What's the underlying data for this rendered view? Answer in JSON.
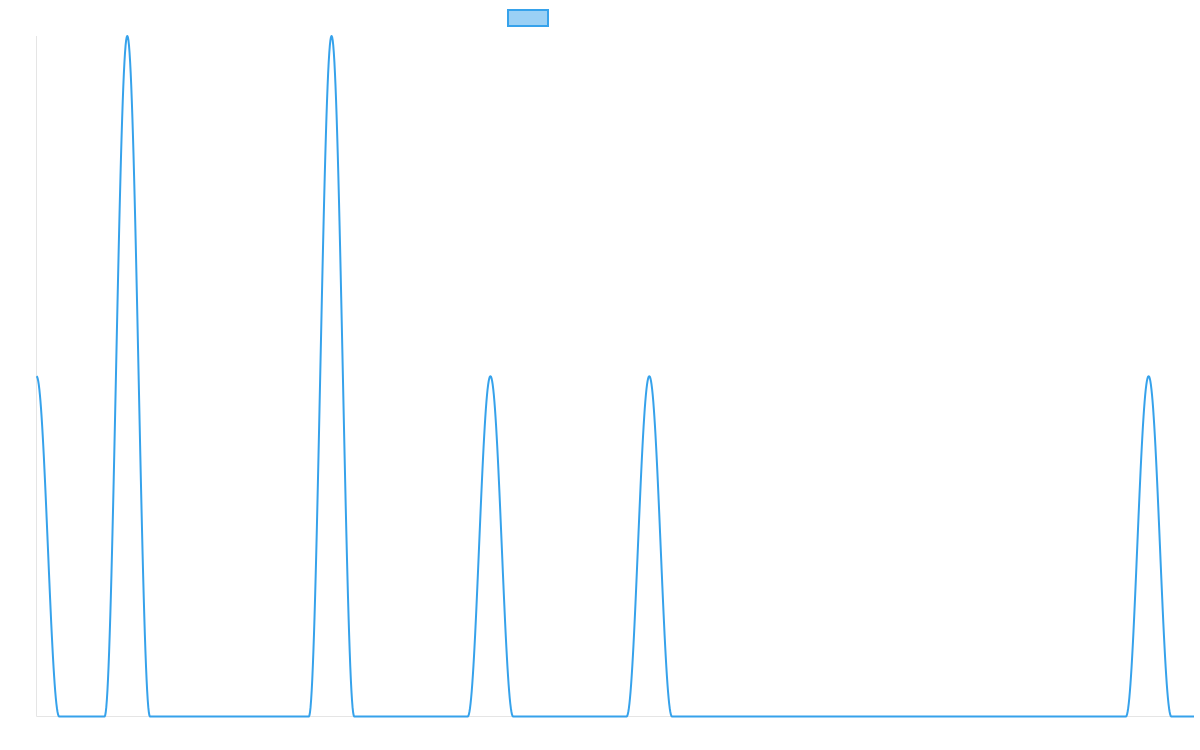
{
  "chart_data": {
    "type": "line",
    "title": "",
    "xlabel": "",
    "ylabel": "",
    "grid": false,
    "legend": {
      "placement": "top-center",
      "entries": [
        {
          "name": ""
        }
      ]
    },
    "colors": {
      "line": "#36a2eb",
      "legend_fill": "#9ad0f5",
      "axis": "#e5e5e5"
    },
    "xlim": [
      0,
      1020
    ],
    "ylim": [
      0,
      2
    ],
    "series": [
      {
        "name": "",
        "peaks": [
          {
            "x": 0,
            "height": 1
          },
          {
            "x": 80,
            "height": 2
          },
          {
            "x": 260,
            "height": 2
          },
          {
            "x": 400,
            "height": 1
          },
          {
            "x": 540,
            "height": 1
          },
          {
            "x": 980,
            "height": 1
          }
        ],
        "peak_half_width": 20
      }
    ]
  }
}
